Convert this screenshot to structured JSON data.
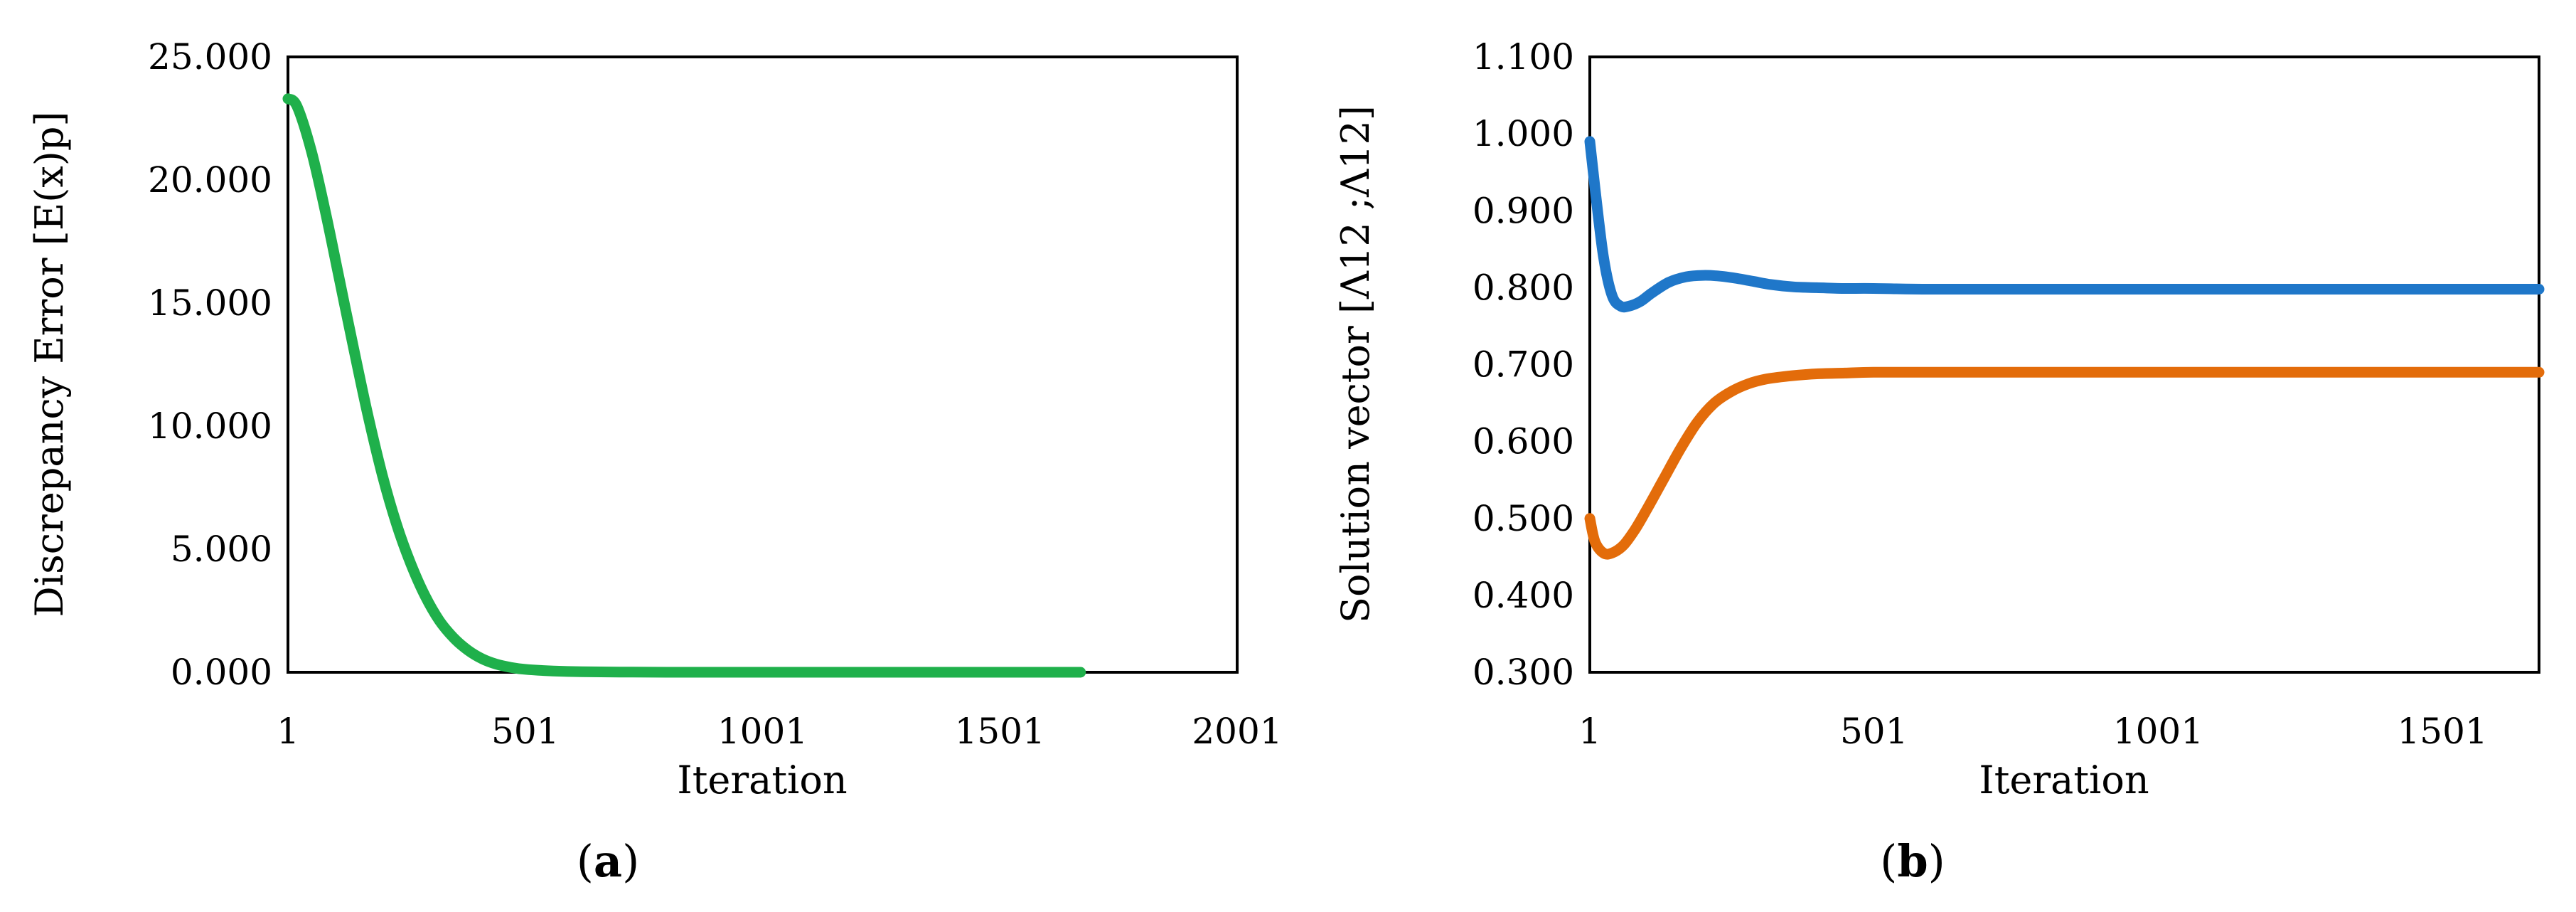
{
  "chart_data": [
    {
      "type": "line",
      "panel_label": "a",
      "xlabel": "Iteration",
      "ylabel": "Discrepancy Error [E(x)p]",
      "xlim": [
        1,
        2001
      ],
      "ylim": [
        0,
        25
      ],
      "x_ticks": [
        "1",
        "501",
        "1001",
        "1501",
        "2001"
      ],
      "y_ticks": [
        "0.000",
        "5.000",
        "10.000",
        "15.000",
        "20.000",
        "25.000"
      ],
      "grid": false,
      "legend": "none",
      "colors": [
        "#1fb04b"
      ],
      "series": [
        {
          "color": "#1fb04b",
          "x": [
            1,
            20,
            50,
            80,
            110,
            140,
            170,
            200,
            230,
            260,
            290,
            320,
            350,
            380,
            410,
            440,
            470,
            500,
            560,
            620,
            700,
            800,
            1000,
            1200,
            1400,
            1671
          ],
          "y": [
            23.3,
            23.0,
            21.2,
            18.7,
            15.9,
            13.1,
            10.4,
            8.0,
            6.0,
            4.4,
            3.1,
            2.1,
            1.4,
            0.9,
            0.55,
            0.33,
            0.2,
            0.12,
            0.05,
            0.02,
            0.01,
            0.0,
            0.0,
            0.0,
            0.0,
            0.0
          ]
        }
      ]
    },
    {
      "type": "line",
      "panel_label": "b",
      "xlabel": "Iteration",
      "ylabel": "Solution vector [Λ12 ;Λ12]",
      "xlim": [
        1,
        1671
      ],
      "ylim": [
        0.3,
        1.1
      ],
      "x_ticks": [
        "1",
        "501",
        "1001",
        "1501"
      ],
      "x_tick_values": [
        1,
        501,
        1001,
        1501
      ],
      "y_ticks": [
        "0.300",
        "0.400",
        "0.500",
        "0.600",
        "0.700",
        "0.800",
        "0.900",
        "1.000",
        "1.100"
      ],
      "grid": false,
      "legend": "none",
      "colors": [
        "#1f77c9",
        "#e36c0a"
      ],
      "series": [
        {
          "color": "#1f77c9",
          "x": [
            1,
            10,
            25,
            40,
            55,
            70,
            90,
            110,
            140,
            170,
            200,
            230,
            260,
            290,
            320,
            360,
            400,
            450,
            500,
            600,
            800,
            1000,
            1200,
            1400,
            1671
          ],
          "y": [
            0.99,
            0.93,
            0.84,
            0.79,
            0.776,
            0.776,
            0.782,
            0.793,
            0.807,
            0.814,
            0.816,
            0.815,
            0.812,
            0.808,
            0.804,
            0.801,
            0.8,
            0.799,
            0.799,
            0.798,
            0.798,
            0.798,
            0.798,
            0.798,
            0.798
          ]
        },
        {
          "color": "#e36c0a",
          "x": [
            1,
            10,
            25,
            40,
            60,
            80,
            100,
            130,
            160,
            190,
            220,
            250,
            280,
            310,
            350,
            400,
            450,
            500,
            600,
            800,
            1000,
            1200,
            1400,
            1671
          ],
          "y": [
            0.5,
            0.47,
            0.455,
            0.455,
            0.465,
            0.485,
            0.51,
            0.55,
            0.59,
            0.625,
            0.65,
            0.665,
            0.675,
            0.681,
            0.685,
            0.688,
            0.689,
            0.69,
            0.69,
            0.69,
            0.69,
            0.69,
            0.69,
            0.69
          ]
        }
      ]
    }
  ]
}
